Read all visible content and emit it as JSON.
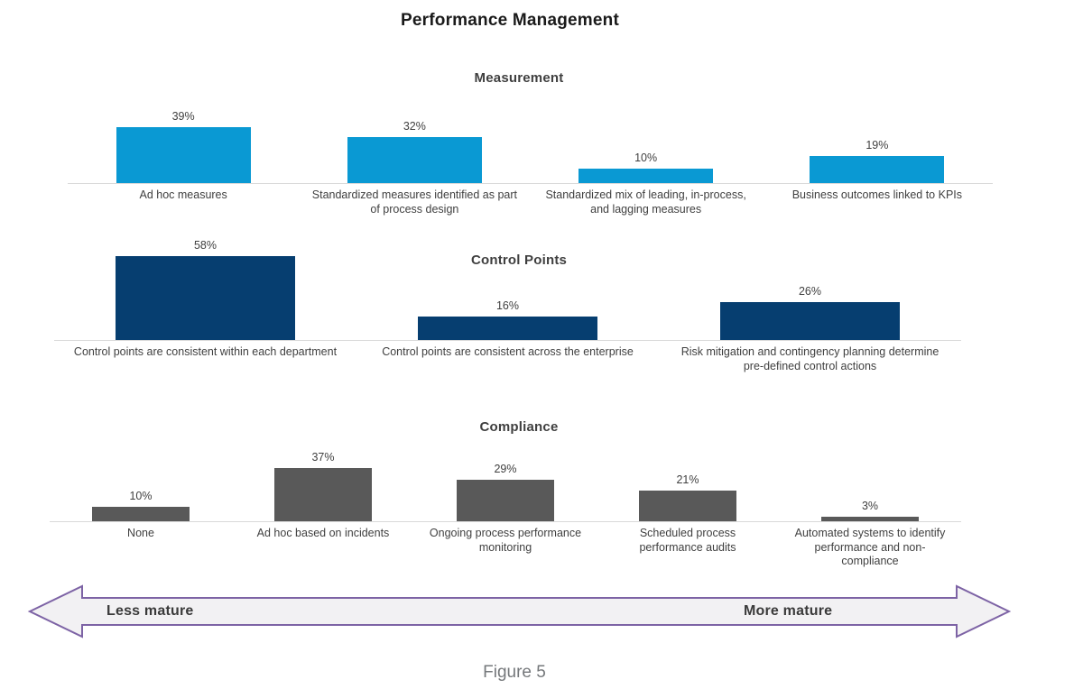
{
  "page": {
    "title": "Performance Management",
    "caption": "Figure 5"
  },
  "maturity_axis": {
    "left_label": "Less mature",
    "right_label": "More mature"
  },
  "colors": {
    "measurement_bar": "#0a99d3",
    "control_points_bar": "#063e70",
    "compliance_bar": "#595959",
    "axis_line": "#d9d9d9",
    "arrow_fill": "#f2f1f3",
    "arrow_border": "#7d63a5",
    "label_text": "#3f3f3f",
    "caption_text": "#75787b"
  },
  "chart_data": [
    {
      "type": "bar",
      "title": "Measurement",
      "unit": "%",
      "bar_color": "#0a99d3",
      "categories": [
        "Ad hoc measures",
        "Standardized measures identified as part of process design",
        "Standardized  mix of leading, in-process, and lagging measures",
        "Business outcomes linked to KPIs"
      ],
      "values": [
        39,
        32,
        10,
        19
      ],
      "value_labels": [
        "39%",
        "32%",
        "10%",
        "19%"
      ],
      "ylim": [
        0,
        60
      ],
      "grid": false,
      "legend": "none"
    },
    {
      "type": "bar",
      "title": "Control Points",
      "unit": "%",
      "bar_color": "#063e70",
      "categories": [
        "Control points are consistent within each department",
        "Control points are consistent across the enterprise",
        "Risk mitigation and contingency planning determine pre-defined control actions"
      ],
      "values": [
        58,
        16,
        26
      ],
      "value_labels": [
        "58%",
        "16%",
        "26%"
      ],
      "ylim": [
        0,
        60
      ],
      "grid": false,
      "legend": "none"
    },
    {
      "type": "bar",
      "title": "Compliance",
      "unit": "%",
      "bar_color": "#595959",
      "categories": [
        "None",
        "Ad hoc based on incidents",
        "Ongoing process performance monitoring",
        "Scheduled process performance audits",
        "Automated systems to identify performance and non-compliance"
      ],
      "values": [
        10,
        37,
        29,
        21,
        3
      ],
      "value_labels": [
        "10%",
        "37%",
        "29%",
        "21%",
        "3%"
      ],
      "ylim": [
        0,
        60
      ],
      "grid": false,
      "legend": "none"
    }
  ]
}
